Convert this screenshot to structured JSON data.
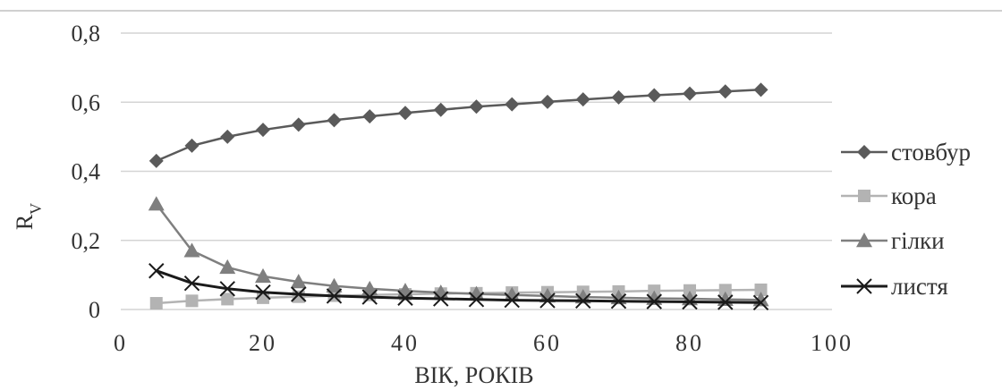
{
  "chart_data": {
    "type": "line",
    "title": "",
    "xlabel": "ВІК, РОКІВ",
    "ylabel": "R",
    "ylabel_sub": "V",
    "xlim": [
      0,
      100
    ],
    "ylim": [
      0,
      0.8
    ],
    "xticks": [
      0,
      20,
      40,
      60,
      80,
      100
    ],
    "xtick_labels": [
      "0",
      "20",
      "40",
      "60",
      "80",
      "100"
    ],
    "yticks": [
      0,
      0.2,
      0.4,
      0.6,
      0.8
    ],
    "ytick_labels": [
      "0",
      "0,2",
      "0,4",
      "0,6",
      "0,8"
    ],
    "grid": "horizontal",
    "legend_position": "right",
    "x": [
      5,
      10,
      15,
      20,
      25,
      30,
      35,
      40,
      45,
      50,
      55,
      60,
      65,
      70,
      75,
      80,
      85,
      90
    ],
    "series": [
      {
        "name": "стовбур",
        "marker": "diamond",
        "color": "#5a5a5a",
        "values": [
          0.43,
          0.474,
          0.5,
          0.52,
          0.535,
          0.548,
          0.559,
          0.569,
          0.578,
          0.587,
          0.594,
          0.601,
          0.608,
          0.614,
          0.62,
          0.625,
          0.631,
          0.636
        ]
      },
      {
        "name": "кора",
        "marker": "square",
        "color": "#b3b3b3",
        "values": [
          0.018,
          0.025,
          0.03,
          0.034,
          0.037,
          0.04,
          0.042,
          0.044,
          0.046,
          0.047,
          0.049,
          0.05,
          0.051,
          0.052,
          0.054,
          0.055,
          0.056,
          0.057
        ]
      },
      {
        "name": "гілки",
        "marker": "triangle",
        "color": "#7f7f7f",
        "values": [
          0.305,
          0.17,
          0.122,
          0.096,
          0.08,
          0.068,
          0.06,
          0.054,
          0.049,
          0.045,
          0.042,
          0.039,
          0.036,
          0.034,
          0.032,
          0.031,
          0.029,
          0.028
        ]
      },
      {
        "name": "листя",
        "marker": "x",
        "color": "#1a1a1a",
        "values": [
          0.112,
          0.076,
          0.06,
          0.05,
          0.044,
          0.039,
          0.036,
          0.033,
          0.031,
          0.029,
          0.027,
          0.026,
          0.025,
          0.024,
          0.023,
          0.022,
          0.021,
          0.02
        ]
      }
    ]
  }
}
